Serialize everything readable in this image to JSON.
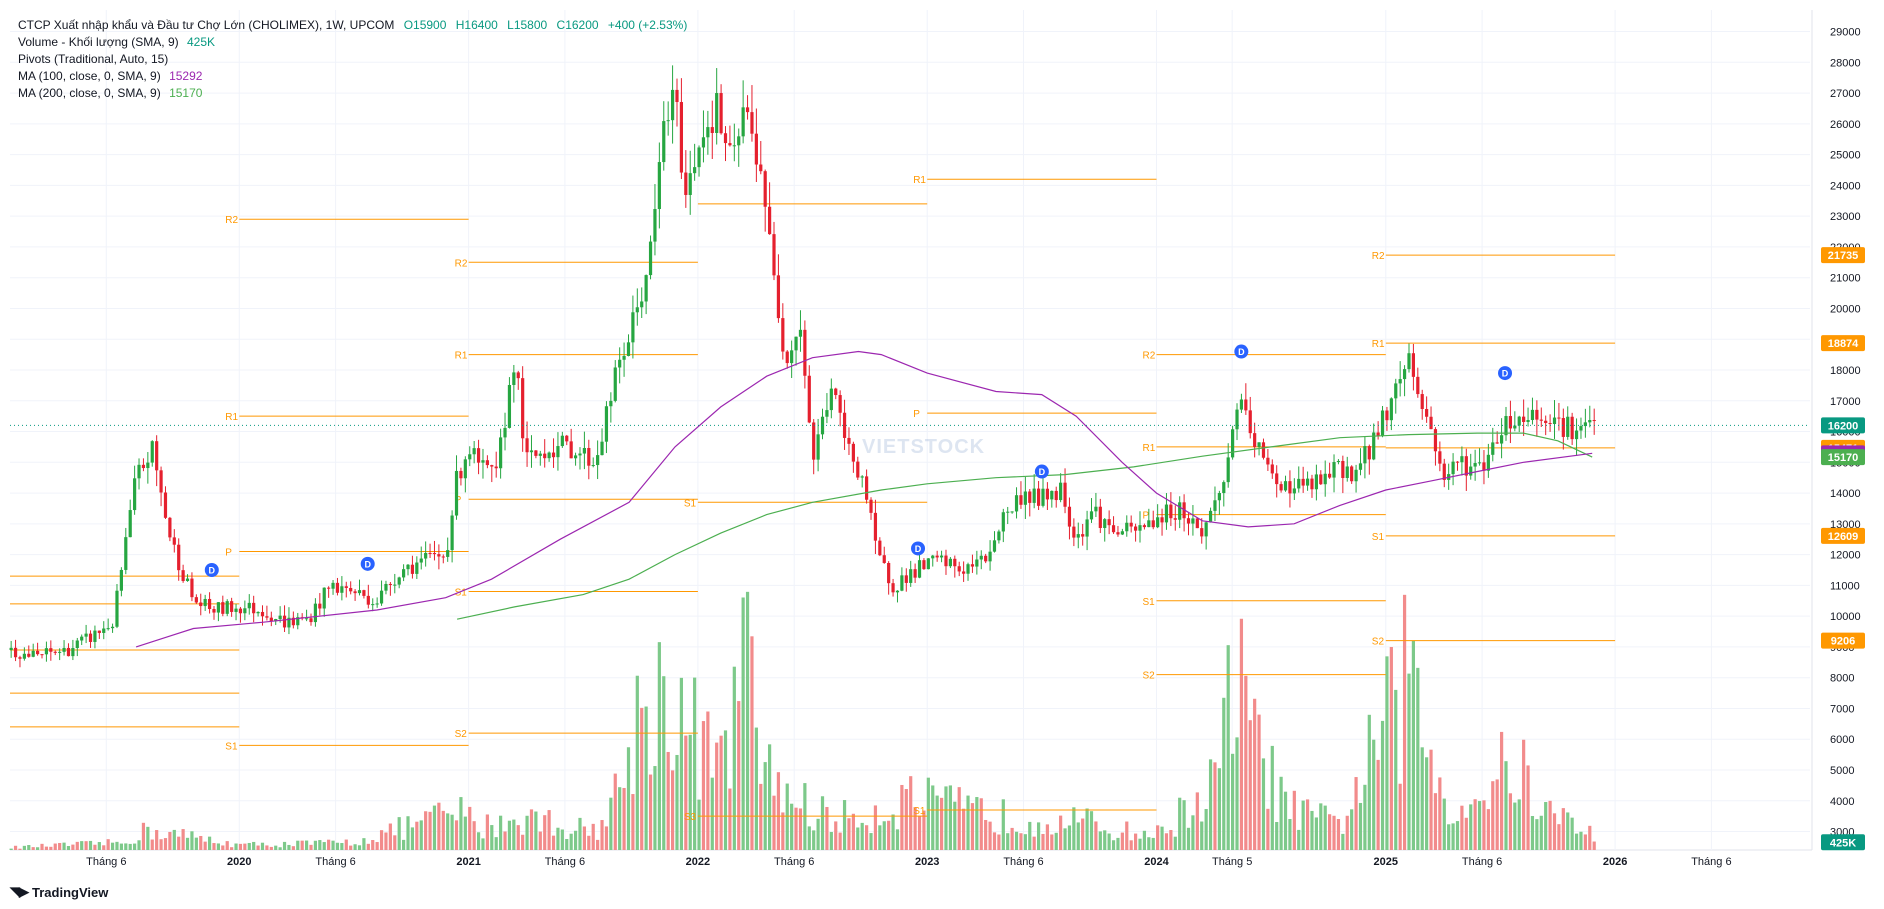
{
  "legend": {
    "title": "CTCP Xuất nhập khẩu và Đầu tư Chợ Lớn (CHOLIMEX), 1W, UPCOM",
    "open": "O15900",
    "high": "H16400",
    "low": "L15800",
    "close": "C16200",
    "change": "+400 (+2.53%)",
    "volume_label": "Volume - Khối lượng (SMA, 9)",
    "volume_value": "425K",
    "pivots_label": "Pivots (Traditional, Auto, 15)",
    "ma100_label": "MA (100, close, 0, SMA, 9)",
    "ma100_value": "15292",
    "ma200_label": "MA (200, close, 0, SMA, 9)",
    "ma200_value": "15170"
  },
  "brand": {
    "name": "TradingView"
  },
  "watermark": "VIETSTOCK",
  "colors": {
    "up": "#089981",
    "down": "#f23645",
    "candle_up": "#26a641",
    "candle_down": "#e5202e",
    "vol_up": "#7dc98a",
    "vol_down": "#f28b8b",
    "pivot": "#ff9800",
    "ma100": "#9c27b0",
    "ma200": "#4caf50",
    "grid": "#f0f3fa"
  },
  "chart_data": {
    "type": "candlestick",
    "x_axis": {
      "labels": [
        "Tháng 6",
        "2020",
        "Tháng 6",
        "2021",
        "Tháng 6",
        "2022",
        "Tháng 6",
        "2023",
        "Tháng 6",
        "2024",
        "Tháng 5",
        "2025",
        "Tháng 6",
        "2026",
        "Tháng 6"
      ],
      "label_dates": [
        2019.42,
        2020.0,
        2020.42,
        2021.0,
        2021.42,
        2022.0,
        2022.42,
        2023.0,
        2023.42,
        2024.0,
        2024.33,
        2025.0,
        2025.42,
        2026.0,
        2026.42
      ],
      "bold": [
        false,
        true,
        false,
        true,
        false,
        true,
        false,
        true,
        false,
        true,
        false,
        true,
        false,
        true,
        false
      ],
      "range": [
        2019.0,
        2026.85
      ]
    },
    "y_axis": {
      "ticks": [
        29000,
        28000,
        27000,
        26000,
        25000,
        24000,
        23000,
        22000,
        21000,
        20000,
        19000,
        18000,
        17000,
        16000,
        15000,
        14000,
        13000,
        12000,
        11000,
        10000,
        9000,
        8000,
        7000,
        6000,
        5000,
        4000,
        3000
      ],
      "range": [
        2400,
        29700
      ]
    },
    "price_labels": [
      {
        "value": "21735",
        "color": "#ff9800"
      },
      {
        "value": "18874",
        "color": "#ff9800"
      },
      {
        "value": "16200",
        "color": "#089981"
      },
      {
        "value": "15471",
        "color": "#ff9800"
      },
      {
        "value": "15292",
        "color": "#9c27b0"
      },
      {
        "value": "15170",
        "color": "#4caf50"
      },
      {
        "value": "12609",
        "color": "#ff9800"
      },
      {
        "value": "9206",
        "color": "#ff9800"
      },
      {
        "value": "425K",
        "color": "#089981"
      }
    ],
    "last_close": 16200,
    "anchors": [
      [
        2019.0,
        8900
      ],
      [
        2019.1,
        8700
      ],
      [
        2019.25,
        8900
      ],
      [
        2019.35,
        9300
      ],
      [
        2019.45,
        9800
      ],
      [
        2019.55,
        14500
      ],
      [
        2019.62,
        15400
      ],
      [
        2019.7,
        12500
      ],
      [
        2019.8,
        10500
      ],
      [
        2019.88,
        10200
      ],
      [
        2020.0,
        10300
      ],
      [
        2020.1,
        10200
      ],
      [
        2020.2,
        9800
      ],
      [
        2020.3,
        9900
      ],
      [
        2020.4,
        11000
      ],
      [
        2020.5,
        10800
      ],
      [
        2020.6,
        10500
      ],
      [
        2020.7,
        11500
      ],
      [
        2020.8,
        11800
      ],
      [
        2020.9,
        12000
      ],
      [
        2020.95,
        14500
      ],
      [
        2021.0,
        15500
      ],
      [
        2021.05,
        14800
      ],
      [
        2021.12,
        14500
      ],
      [
        2021.2,
        18500
      ],
      [
        2021.25,
        15000
      ],
      [
        2021.35,
        15500
      ],
      [
        2021.45,
        15500
      ],
      [
        2021.55,
        15000
      ],
      [
        2021.65,
        18000
      ],
      [
        2021.73,
        19800
      ],
      [
        2021.8,
        22000
      ],
      [
        2021.85,
        26000
      ],
      [
        2021.9,
        26800
      ],
      [
        2021.95,
        23500
      ],
      [
        2022.0,
        25500
      ],
      [
        2022.08,
        26500
      ],
      [
        2022.15,
        24500
      ],
      [
        2022.2,
        26500
      ],
      [
        2022.28,
        24500
      ],
      [
        2022.32,
        21500
      ],
      [
        2022.38,
        18500
      ],
      [
        2022.45,
        19500
      ],
      [
        2022.5,
        15000
      ],
      [
        2022.58,
        17500
      ],
      [
        2022.65,
        15500
      ],
      [
        2022.72,
        14500
      ],
      [
        2022.78,
        12000
      ],
      [
        2022.85,
        11000
      ],
      [
        2022.95,
        11500
      ],
      [
        2023.05,
        11800
      ],
      [
        2023.15,
        11500
      ],
      [
        2023.25,
        11800
      ],
      [
        2023.33,
        13200
      ],
      [
        2023.42,
        14000
      ],
      [
        2023.5,
        13800
      ],
      [
        2023.58,
        14200
      ],
      [
        2023.65,
        12500
      ],
      [
        2023.72,
        13500
      ],
      [
        2023.8,
        12800
      ],
      [
        2023.9,
        12700
      ],
      [
        2024.0,
        13200
      ],
      [
        2024.1,
        13500
      ],
      [
        2024.2,
        12700
      ],
      [
        2024.3,
        14500
      ],
      [
        2024.35,
        17000
      ],
      [
        2024.42,
        15800
      ],
      [
        2024.5,
        14500
      ],
      [
        2024.6,
        14200
      ],
      [
        2024.7,
        14300
      ],
      [
        2024.8,
        14800
      ],
      [
        2024.88,
        14700
      ],
      [
        2024.95,
        15800
      ],
      [
        2025.05,
        17500
      ],
      [
        2025.1,
        18500
      ],
      [
        2025.15,
        17000
      ],
      [
        2025.2,
        16000
      ],
      [
        2025.25,
        14500
      ],
      [
        2025.32,
        15000
      ],
      [
        2025.42,
        14800
      ],
      [
        2025.5,
        16200
      ],
      [
        2025.6,
        16500
      ],
      [
        2025.7,
        16600
      ],
      [
        2025.8,
        16100
      ],
      [
        2025.86,
        16000
      ],
      [
        2025.9,
        16200
      ]
    ],
    "volume_anchors": [
      [
        2019.0,
        100
      ],
      [
        2019.5,
        300
      ],
      [
        2019.6,
        800
      ],
      [
        2020.0,
        200
      ],
      [
        2020.5,
        300
      ],
      [
        2020.95,
        1500
      ],
      [
        2021.05,
        900
      ],
      [
        2021.25,
        1300
      ],
      [
        2021.5,
        800
      ],
      [
        2021.6,
        1000
      ],
      [
        2021.7,
        4000
      ],
      [
        2021.8,
        6500
      ],
      [
        2021.95,
        5000
      ],
      [
        2022.1,
        3000
      ],
      [
        2022.2,
        7500
      ],
      [
        2022.3,
        3000
      ],
      [
        2022.45,
        1800
      ],
      [
        2022.6,
        1200
      ],
      [
        2022.8,
        1500
      ],
      [
        2022.9,
        2000
      ],
      [
        2023.2,
        1500
      ],
      [
        2023.4,
        1200
      ],
      [
        2023.6,
        1300
      ],
      [
        2023.8,
        800
      ],
      [
        2024.0,
        600
      ],
      [
        2024.25,
        2500
      ],
      [
        2024.35,
        7000
      ],
      [
        2024.45,
        3500
      ],
      [
        2024.6,
        1500
      ],
      [
        2024.8,
        1000
      ],
      [
        2024.98,
        4500
      ],
      [
        2025.1,
        6800
      ],
      [
        2025.2,
        3500
      ],
      [
        2025.3,
        1500
      ],
      [
        2025.45,
        2500
      ],
      [
        2025.55,
        3500
      ],
      [
        2025.7,
        1500
      ],
      [
        2025.85,
        900
      ],
      [
        2025.9,
        700
      ]
    ],
    "ma100": [
      [
        2019.55,
        9000
      ],
      [
        2019.8,
        9600
      ],
      [
        2020.1,
        9800
      ],
      [
        2020.6,
        10200
      ],
      [
        2020.9,
        10600
      ],
      [
        2021.1,
        11200
      ],
      [
        2021.4,
        12500
      ],
      [
        2021.7,
        13700
      ],
      [
        2021.9,
        15500
      ],
      [
        2022.1,
        16800
      ],
      [
        2022.3,
        17800
      ],
      [
        2022.5,
        18400
      ],
      [
        2022.7,
        18600
      ],
      [
        2022.8,
        18500
      ],
      [
        2023.0,
        17900
      ],
      [
        2023.3,
        17300
      ],
      [
        2023.5,
        17200
      ],
      [
        2023.65,
        16500
      ],
      [
        2023.85,
        15000
      ],
      [
        2024.0,
        14000
      ],
      [
        2024.2,
        13100
      ],
      [
        2024.4,
        12900
      ],
      [
        2024.6,
        13000
      ],
      [
        2024.8,
        13600
      ],
      [
        2025.0,
        14100
      ],
      [
        2025.2,
        14400
      ],
      [
        2025.4,
        14700
      ],
      [
        2025.6,
        15000
      ],
      [
        2025.9,
        15292
      ]
    ],
    "ma200": [
      [
        2020.95,
        9900
      ],
      [
        2021.2,
        10300
      ],
      [
        2021.5,
        10700
      ],
      [
        2021.7,
        11200
      ],
      [
        2021.9,
        12000
      ],
      [
        2022.1,
        12700
      ],
      [
        2022.3,
        13300
      ],
      [
        2022.5,
        13700
      ],
      [
        2022.8,
        14100
      ],
      [
        2023.0,
        14300
      ],
      [
        2023.3,
        14500
      ],
      [
        2023.6,
        14600
      ],
      [
        2023.9,
        14850
      ],
      [
        2024.2,
        15200
      ],
      [
        2024.5,
        15500
      ],
      [
        2024.8,
        15800
      ],
      [
        2025.1,
        15900
      ],
      [
        2025.4,
        15950
      ],
      [
        2025.6,
        15950
      ],
      [
        2025.75,
        15700
      ],
      [
        2025.9,
        15170
      ]
    ],
    "pivots": [
      {
        "x1": 2019.0,
        "x2": 2020.0,
        "levels": [
          [
            "",
            11300
          ],
          [
            "",
            10400
          ],
          [
            "",
            8900
          ],
          [
            "",
            7500
          ],
          [
            "",
            6400
          ]
        ]
      },
      {
        "x1": 2020.0,
        "x2": 2021.0,
        "levels": [
          [
            "R2",
            22900
          ],
          [
            "R1",
            16500
          ],
          [
            "P",
            12100
          ],
          [
            "S1",
            5800
          ]
        ]
      },
      {
        "x1": 2021.0,
        "x2": 2022.0,
        "levels": [
          [
            "R2",
            21500
          ],
          [
            "R1",
            18500
          ],
          [
            "P",
            13800
          ],
          [
            "S1",
            10800
          ],
          [
            "S2",
            6200
          ]
        ]
      },
      {
        "x1": 2022.0,
        "x2": 2023.0,
        "levels": [
          [
            "",
            23400
          ],
          [
            "S1",
            13700
          ],
          [
            "S3",
            3500
          ]
        ]
      },
      {
        "x1": 2023.0,
        "x2": 2024.0,
        "levels": [
          [
            "R1",
            24200
          ],
          [
            "P",
            16600
          ],
          [
            "S1",
            3700
          ]
        ]
      },
      {
        "x1": 2024.0,
        "x2": 2025.0,
        "levels": [
          [
            "R2",
            18500
          ],
          [
            "R1",
            15500
          ],
          [
            "P",
            13300
          ],
          [
            "S1",
            10500
          ],
          [
            "S2",
            8100
          ]
        ]
      },
      {
        "x1": 2025.0,
        "x2": 2026.0,
        "levels": [
          [
            "R2",
            21735
          ],
          [
            "R1",
            18874
          ],
          [
            "",
            15471
          ],
          [
            "S1",
            12609
          ],
          [
            "S2",
            9206
          ]
        ]
      }
    ],
    "dividend_markers": [
      {
        "label": "D",
        "x": 2019.88,
        "y": 11500
      },
      {
        "label": "D",
        "x": 2020.56,
        "y": 11700
      },
      {
        "label": "D",
        "x": 2022.96,
        "y": 12200
      },
      {
        "label": "D",
        "x": 2023.5,
        "y": 14700
      },
      {
        "label": "D",
        "x": 2024.37,
        "y": 18600
      },
      {
        "label": "D",
        "x": 2025.52,
        "y": 17900
      }
    ]
  }
}
